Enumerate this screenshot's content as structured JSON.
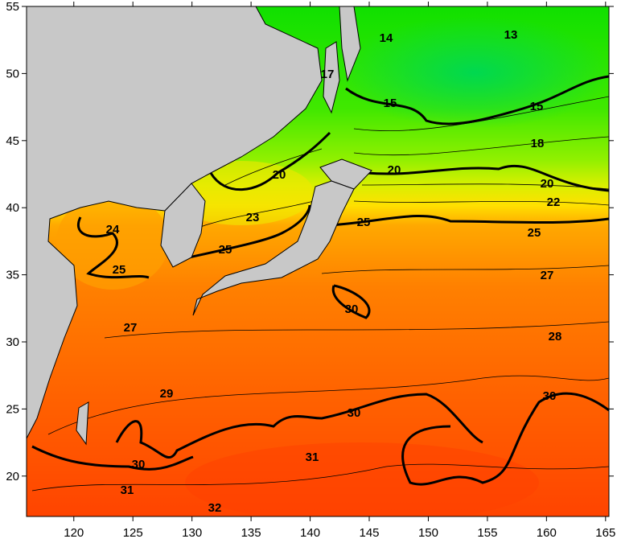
{
  "map": {
    "type": "sea surface temperature contour map",
    "lon_range": [
      116,
      165
    ],
    "lat_range": [
      17,
      55
    ],
    "x_tick_labels": [
      "120",
      "125",
      "130",
      "135",
      "140",
      "145",
      "150",
      "155",
      "160",
      "165"
    ],
    "y_tick_labels": [
      "20",
      "25",
      "30",
      "35",
      "40",
      "45",
      "50",
      "55"
    ],
    "contour_labels": [
      "14",
      "13",
      "17",
      "15",
      "15",
      "18",
      "20",
      "20",
      "20",
      "22",
      "23",
      "24",
      "25",
      "25",
      "25",
      "25",
      "27",
      "27",
      "28",
      "29",
      "30",
      "30",
      "30",
      "30",
      "31",
      "31",
      "32"
    ],
    "colors": {
      "land": "#c8c8c8",
      "cold": "#00e000",
      "cool": "#80f000",
      "mild": "#f0f000",
      "warm": "#ffa000",
      "hot": "#ff4800"
    }
  }
}
